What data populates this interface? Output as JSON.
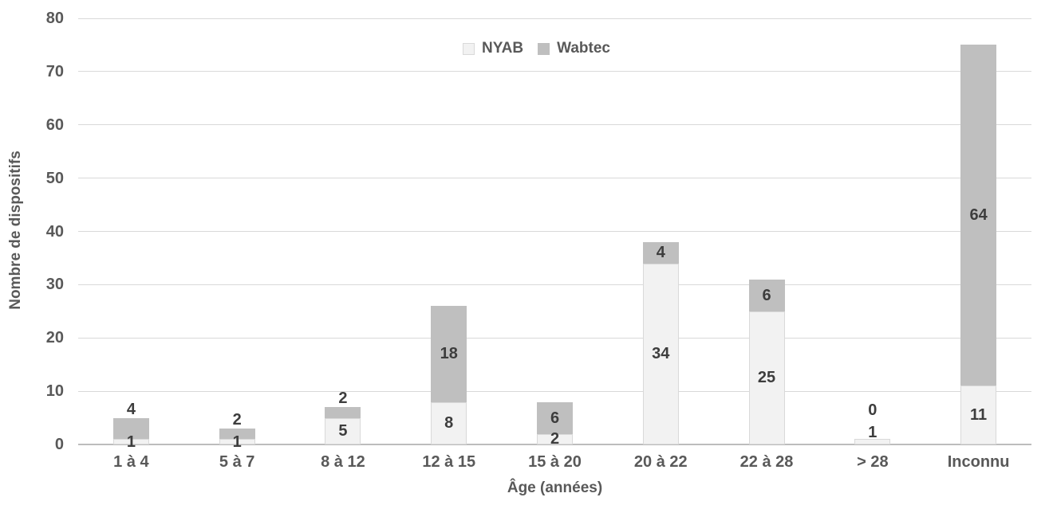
{
  "chart_data": {
    "type": "bar",
    "stacked": true,
    "title": "",
    "categories": [
      "1 à 4",
      "5 à 7",
      "8 à 12",
      "12 à 15",
      "15 à 20",
      "20 à 22",
      "22 à 28",
      "> 28",
      "Inconnu"
    ],
    "series": [
      {
        "name": "NYAB",
        "values": [
          1,
          1,
          5,
          8,
          2,
          34,
          25,
          1,
          11
        ],
        "color": "#f2f2f2",
        "border_color": "#d9d9d9",
        "label_mode": [
          "in",
          "in",
          "in",
          "in",
          "in",
          "in",
          "in",
          "out",
          "in"
        ]
      },
      {
        "name": "Wabtec",
        "values": [
          4,
          2,
          2,
          18,
          6,
          4,
          6,
          0,
          64
        ],
        "color": "#bfbfbf",
        "border_color": "#bfbfbf",
        "label_mode": [
          "out",
          "out",
          "out",
          "in",
          "in",
          "in",
          "in",
          "out",
          "in"
        ]
      }
    ],
    "totals": [
      5,
      3,
      7,
      26,
      8,
      38,
      31,
      1,
      75
    ],
    "xlabel": "Âge (années)",
    "ylabel": "Nombre de dispositifs",
    "ylim": [
      0,
      80
    ],
    "ytick_step": 10,
    "yticks": [
      "0",
      "10",
      "20",
      "30",
      "40",
      "50",
      "60",
      "70",
      "80"
    ],
    "grid": true,
    "legend_position": "top-center",
    "colors": {
      "gridline": "#d9d9d9",
      "axis_line": "#bdbdbd",
      "axis_text": "#595959",
      "data_label": "#3d3d3d",
      "background": "#ffffff"
    }
  }
}
